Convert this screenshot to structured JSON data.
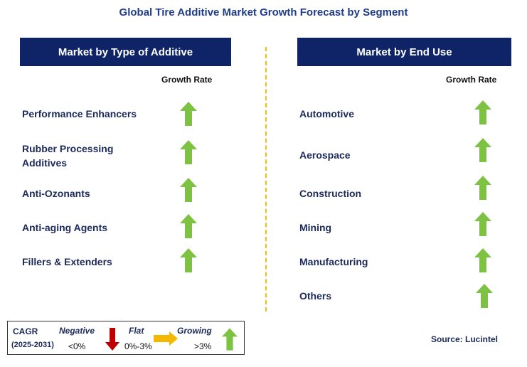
{
  "title": "Global Tire Additive Market Growth Forecast by Segment",
  "left_panel": {
    "header": "Market by Type of Additive",
    "growth_label": "Growth Rate",
    "items": [
      {
        "label_lines": [
          "Performance Enhancers"
        ],
        "trend": "up"
      },
      {
        "label_lines": [
          "Rubber Processing",
          "Additives"
        ],
        "trend": "up"
      },
      {
        "label_lines": [
          "Anti-Ozonants"
        ],
        "trend": "up"
      },
      {
        "label_lines": [
          "Anti-aging Agents"
        ],
        "trend": "up"
      },
      {
        "label_lines": [
          "Fillers & Extenders"
        ],
        "trend": "up"
      }
    ]
  },
  "right_panel": {
    "header": "Market by End Use",
    "growth_label": "Growth Rate",
    "items": [
      {
        "label_lines": [
          "Automotive"
        ],
        "trend": "up"
      },
      {
        "label_lines": [
          "Aerospace"
        ],
        "trend": "up"
      },
      {
        "label_lines": [
          "Construction"
        ],
        "trend": "up"
      },
      {
        "label_lines": [
          "Mining"
        ],
        "trend": "up"
      },
      {
        "label_lines": [
          "Manufacturing"
        ],
        "trend": "up"
      },
      {
        "label_lines": [
          "Others"
        ],
        "trend": "up"
      }
    ]
  },
  "legend": {
    "cagr_label": "CAGR",
    "period": "(2025-2031)",
    "negative": {
      "label": "Negative",
      "range": "<0%",
      "icon": "arrow-down-red"
    },
    "flat": {
      "label": "Flat",
      "range": "0%-3%",
      "icon": "arrow-right-yellow"
    },
    "growing": {
      "label": "Growing",
      "range": ">3%",
      "icon": "arrow-up-green"
    }
  },
  "source": "Source: Lucintel",
  "colors": {
    "header_bg": "#0e2466",
    "title": "#1f3c88",
    "up_arrow": "#7dc242",
    "down_arrow": "#c00000",
    "flat_arrow": "#f5b800",
    "divider": "#f2c200"
  }
}
